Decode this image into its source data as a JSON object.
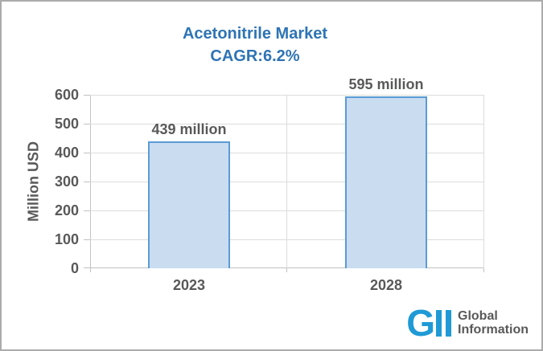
{
  "frame": {
    "background": "#ffffff",
    "border_color": "#ababab"
  },
  "title": {
    "line1": "Acetonitrile Market",
    "line2": "CAGR:6.2%",
    "color": "#2e74b5"
  },
  "chart_data": {
    "type": "bar",
    "title": "Acetonitrile Market CAGR:6.2%",
    "categories": [
      "2023",
      "2028"
    ],
    "values": [
      439,
      595
    ],
    "bar_labels": [
      "439 million",
      "595 million"
    ],
    "xlabel": "",
    "ylabel": "Million USD",
    "ylim": [
      0,
      600
    ],
    "yticks": [
      0,
      100,
      200,
      300,
      400,
      500,
      600
    ],
    "grid": true,
    "legend": "none",
    "colors": {
      "bar_fill": "#c9dcf0",
      "bar_border": "#5b9bd5",
      "gridline": "#dcdcdc",
      "axis": "#c2c2c2",
      "label_text": "#595959"
    }
  },
  "logo": {
    "monogram": "G",
    "line1": "Global",
    "line2": "Information",
    "blue": "#1f9ad6",
    "text_color": "#595959"
  }
}
